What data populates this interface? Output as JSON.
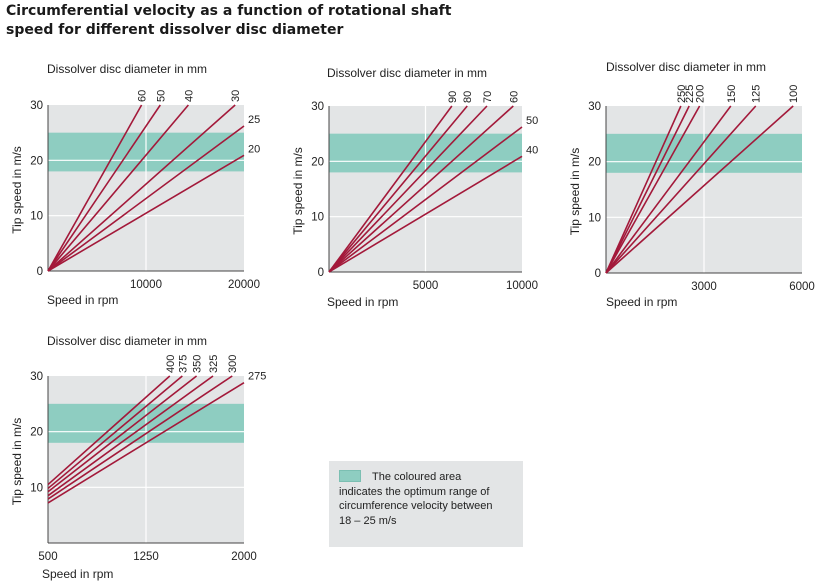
{
  "title": {
    "line1": "Circumferential velocity as a function of rotational shaft",
    "line2": "speed for different dissolver disc diameter"
  },
  "legend": {
    "text": "The coloured area\nindicates the optimum range of\ncircumference velocity between\n18 – 25 m/s"
  },
  "colors": {
    "plot_bg": "#e3e5e6",
    "band": "#8ecdc1",
    "line": "#a3193a",
    "grid": "#ffffff"
  },
  "chart_data": [
    {
      "type": "line",
      "diameter_title": "Dissolver disc diameter  in mm",
      "xlabel": "Speed in rpm",
      "ylabel": "Tip speed in m/s",
      "xlim": [
        0,
        20000
      ],
      "ylim": [
        0,
        30
      ],
      "xticks": [
        "10000",
        "20000"
      ],
      "yticks": [
        "0",
        "10",
        "20",
        "30"
      ],
      "optimum_band": [
        18,
        25
      ],
      "series": [
        {
          "name": "60",
          "x": [
            0,
            9549
          ],
          "y": [
            0,
            30
          ]
        },
        {
          "name": "50",
          "x": [
            0,
            11459
          ],
          "y": [
            0,
            30
          ]
        },
        {
          "name": "40",
          "x": [
            0,
            14324
          ],
          "y": [
            0,
            30
          ]
        },
        {
          "name": "30",
          "x": [
            0,
            19099
          ],
          "y": [
            0,
            30
          ]
        },
        {
          "name": "25",
          "x": [
            0,
            20000
          ],
          "y": [
            0,
            26.2
          ]
        },
        {
          "name": "20",
          "x": [
            0,
            20000
          ],
          "y": [
            0,
            20.9
          ]
        }
      ]
    },
    {
      "type": "line",
      "diameter_title": "Dissolver disc diameter  in mm",
      "xlabel": "Speed in rpm",
      "ylabel": "Tip speed in m/s",
      "xlim": [
        0,
        10000
      ],
      "ylim": [
        0,
        30
      ],
      "xticks": [
        "5000",
        "10000"
      ],
      "yticks": [
        "0",
        "10",
        "20",
        "30"
      ],
      "optimum_band": [
        18,
        25
      ],
      "series": [
        {
          "name": "90",
          "x": [
            0,
            6366
          ],
          "y": [
            0,
            30
          ]
        },
        {
          "name": "80",
          "x": [
            0,
            7162
          ],
          "y": [
            0,
            30
          ]
        },
        {
          "name": "70",
          "x": [
            0,
            8185
          ],
          "y": [
            0,
            30
          ]
        },
        {
          "name": "60",
          "x": [
            0,
            9549
          ],
          "y": [
            0,
            30
          ]
        },
        {
          "name": "50",
          "x": [
            0,
            10000
          ],
          "y": [
            0,
            26.2
          ]
        },
        {
          "name": "40",
          "x": [
            0,
            10000
          ],
          "y": [
            0,
            20.9
          ]
        }
      ]
    },
    {
      "type": "line",
      "diameter_title": "Dissolver disc diameter  in mm",
      "xlabel": "Speed in rpm",
      "ylabel": "Tip speed in m/s",
      "xlim": [
        0,
        6000
      ],
      "ylim": [
        0,
        30
      ],
      "xticks": [
        "3000",
        "6000"
      ],
      "yticks": [
        "0",
        "10",
        "20",
        "30"
      ],
      "optimum_band": [
        18,
        25
      ],
      "series": [
        {
          "name": "250",
          "x": [
            0,
            2292
          ],
          "y": [
            0,
            30
          ]
        },
        {
          "name": "225",
          "x": [
            0,
            2546
          ],
          "y": [
            0,
            30
          ]
        },
        {
          "name": "200",
          "x": [
            0,
            2865
          ],
          "y": [
            0,
            30
          ]
        },
        {
          "name": "150",
          "x": [
            0,
            3820
          ],
          "y": [
            0,
            30
          ]
        },
        {
          "name": "125",
          "x": [
            0,
            4584
          ],
          "y": [
            0,
            30
          ]
        },
        {
          "name": "100",
          "x": [
            0,
            5730
          ],
          "y": [
            0,
            30
          ]
        }
      ]
    },
    {
      "type": "line",
      "diameter_title": "Dissolver disc diameter  in mm",
      "xlabel": "Speed in rpm",
      "ylabel": "Tip speed in m/s",
      "xlim": [
        500,
        2000
      ],
      "ylim": [
        0,
        30
      ],
      "xticks": [
        "500",
        "1250",
        "2000"
      ],
      "yticks": [
        "10",
        "20",
        "30"
      ],
      "optimum_band": [
        18,
        25
      ],
      "series": [
        {
          "name": "400",
          "x": [
            500,
            1432
          ],
          "y": [
            10.5,
            30
          ]
        },
        {
          "name": "375",
          "x": [
            500,
            1528
          ],
          "y": [
            9.8,
            30
          ]
        },
        {
          "name": "350",
          "x": [
            500,
            1637
          ],
          "y": [
            9.2,
            30
          ]
        },
        {
          "name": "325",
          "x": [
            500,
            1763
          ],
          "y": [
            8.5,
            30
          ]
        },
        {
          "name": "300",
          "x": [
            500,
            1910
          ],
          "y": [
            7.9,
            30
          ]
        },
        {
          "name": "275",
          "x": [
            500,
            2000
          ],
          "y": [
            7.2,
            28.8
          ]
        }
      ]
    }
  ]
}
